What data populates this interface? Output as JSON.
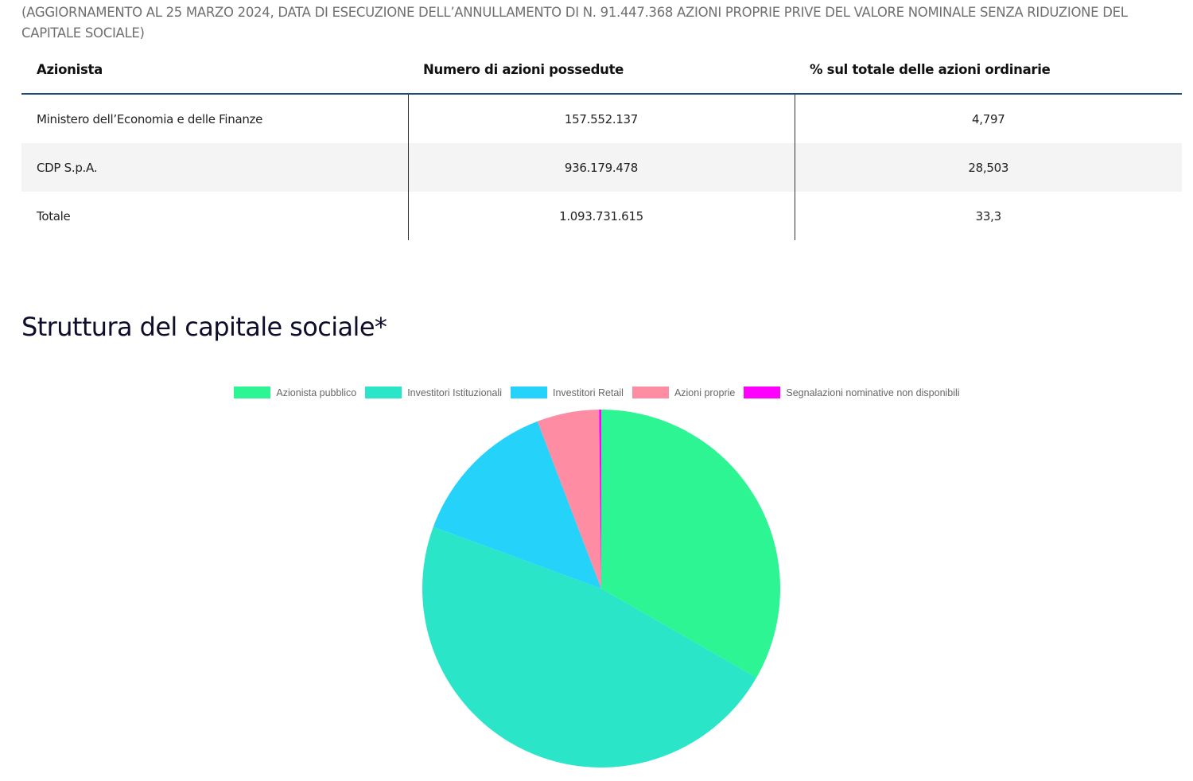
{
  "intro_note": "(AGGIORNAMENTO AL 25 MARZO 2024, DATA DI ESECUZIONE DELL’ANNULLAMENTO DI N. 91.447.368 AZIONI PROPRIE PRIVE DEL VALORE NOMINALE SENZA RIDUZIONE DEL CAPITALE SOCIALE)",
  "table": {
    "headers": [
      "Azionista",
      "Numero di azioni possedute",
      "% sul totale delle azioni ordinarie"
    ],
    "rows": [
      {
        "azionista": "Ministero dell’Economia e delle Finanze",
        "azioni": "157.552.137",
        "percentuale": "4,797"
      },
      {
        "azionista": "CDP S.p.A.",
        "azioni": "936.179.478",
        "percentuale": "28,503"
      },
      {
        "azionista": "Totale",
        "azioni": "1.093.731.615",
        "percentuale": "33,3"
      }
    ]
  },
  "section_title": "Struttura del capitale sociale*",
  "chart_data": {
    "type": "pie",
    "title": "",
    "legend_position": "top",
    "categories": [
      "Azionista pubblico",
      "Investitori Istituzionali",
      "Investitori Retail",
      "Azioni proprie",
      "Segnalazioni nominative non disponibili"
    ],
    "values": [
      33.3,
      47.3,
      13.6,
      5.6,
      0.2
    ],
    "colors": [
      "#2ef594",
      "#2ae5c8",
      "#25d2f9",
      "#fe8ca3",
      "#ff00ff"
    ]
  }
}
